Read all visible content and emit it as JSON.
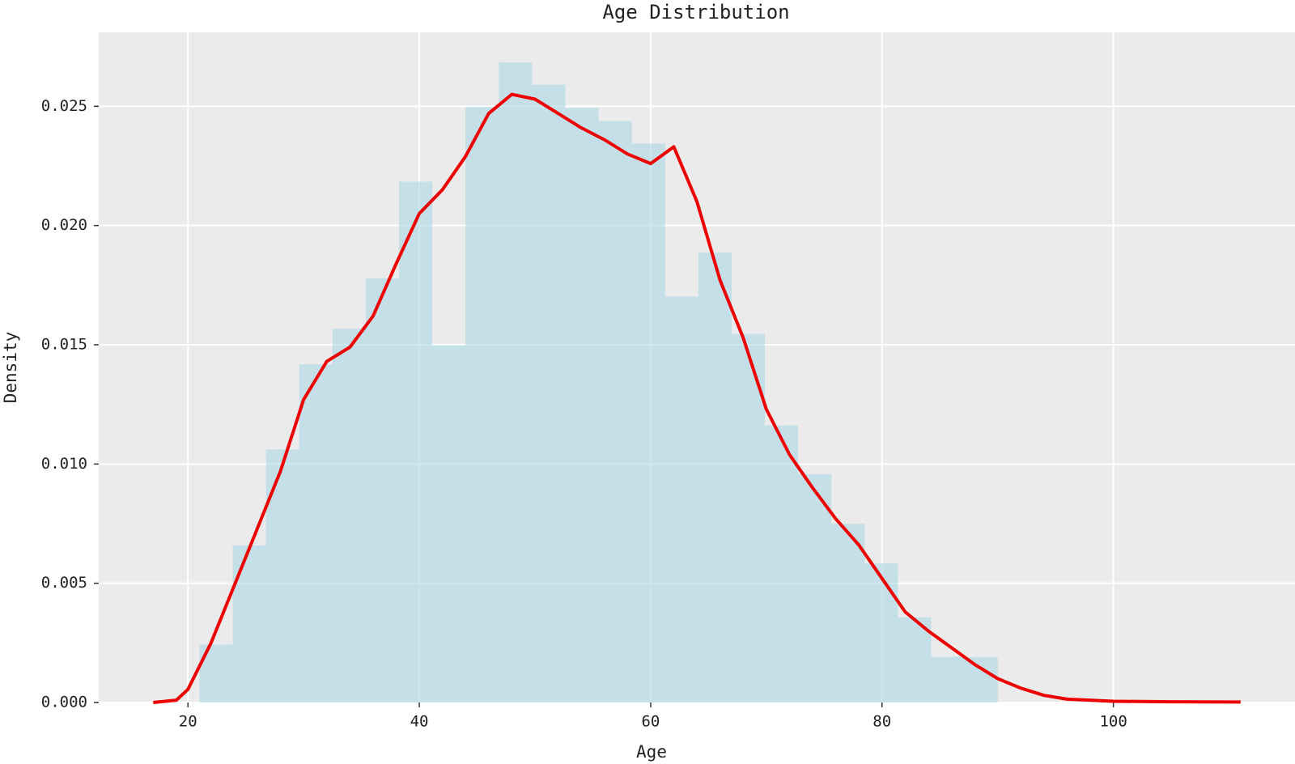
{
  "chart_data": {
    "type": "histogram",
    "title": "Age Distribution",
    "x_label": "Age",
    "y_label": "Density",
    "bins": [
      21,
      23.875,
      26.75,
      29.625,
      32.5,
      35.375,
      38.25,
      41.125,
      44,
      46.875,
      49.75,
      52.625,
      55.5,
      58.375,
      61.25,
      64.125,
      67,
      69.875,
      72.75,
      75.625,
      78.5,
      81.375,
      84.25,
      87.125,
      90
    ],
    "values": [
      0.00243,
      0.00659,
      0.01061,
      0.01418,
      0.01567,
      0.01779,
      0.02184,
      0.01498,
      0.02497,
      0.02684,
      0.0259,
      0.02493,
      0.02438,
      0.02344,
      0.01702,
      0.01886,
      0.01546,
      0.01162,
      0.00957,
      0.00749,
      0.00583,
      0.00357,
      0.00191,
      0.00191
    ],
    "color": "#add8e6",
    "kde": {
      "color": "#ee0000",
      "x": [
        17,
        19,
        20,
        22,
        24,
        26,
        28,
        30,
        32,
        34,
        36,
        38,
        40,
        42,
        44,
        46,
        48,
        50,
        52,
        54,
        56,
        58,
        60,
        62,
        64,
        66,
        68,
        70,
        72,
        74,
        76,
        78,
        80,
        82,
        84,
        86,
        88,
        90,
        92,
        94,
        96,
        100,
        105,
        111
      ],
      "values": [
        0,
        0.0001,
        0.00055,
        0.0025,
        0.0049,
        0.0073,
        0.0097,
        0.0127,
        0.0143,
        0.0149,
        0.0162,
        0.0184,
        0.0205,
        0.0215,
        0.0229,
        0.0247,
        0.0255,
        0.0253,
        0.0247,
        0.0241,
        0.0236,
        0.023,
        0.0226,
        0.0233,
        0.021,
        0.0177,
        0.0153,
        0.0123,
        0.0104,
        0.009,
        0.0077,
        0.0066,
        0.0052,
        0.0038,
        0.003,
        0.0023,
        0.0016,
        0.001,
        0.0006,
        0.0003,
        0.00014,
        5e-05,
        3e-05,
        2e-05
      ]
    },
    "xlim": [
      12.29,
      115.7
    ],
    "ylim": [
      0,
      0.0281
    ],
    "xticks": [
      20,
      40,
      60,
      80,
      100
    ],
    "yticks": [
      {
        "value": 0,
        "label": "0.000"
      },
      {
        "value": 0.005,
        "label": "0.005"
      },
      {
        "value": 0.01,
        "label": "0.010"
      },
      {
        "value": 0.015,
        "label": "0.015"
      },
      {
        "value": 0.02,
        "label": "0.020"
      },
      {
        "value": 0.025,
        "label": "0.025"
      }
    ],
    "grid": true
  }
}
